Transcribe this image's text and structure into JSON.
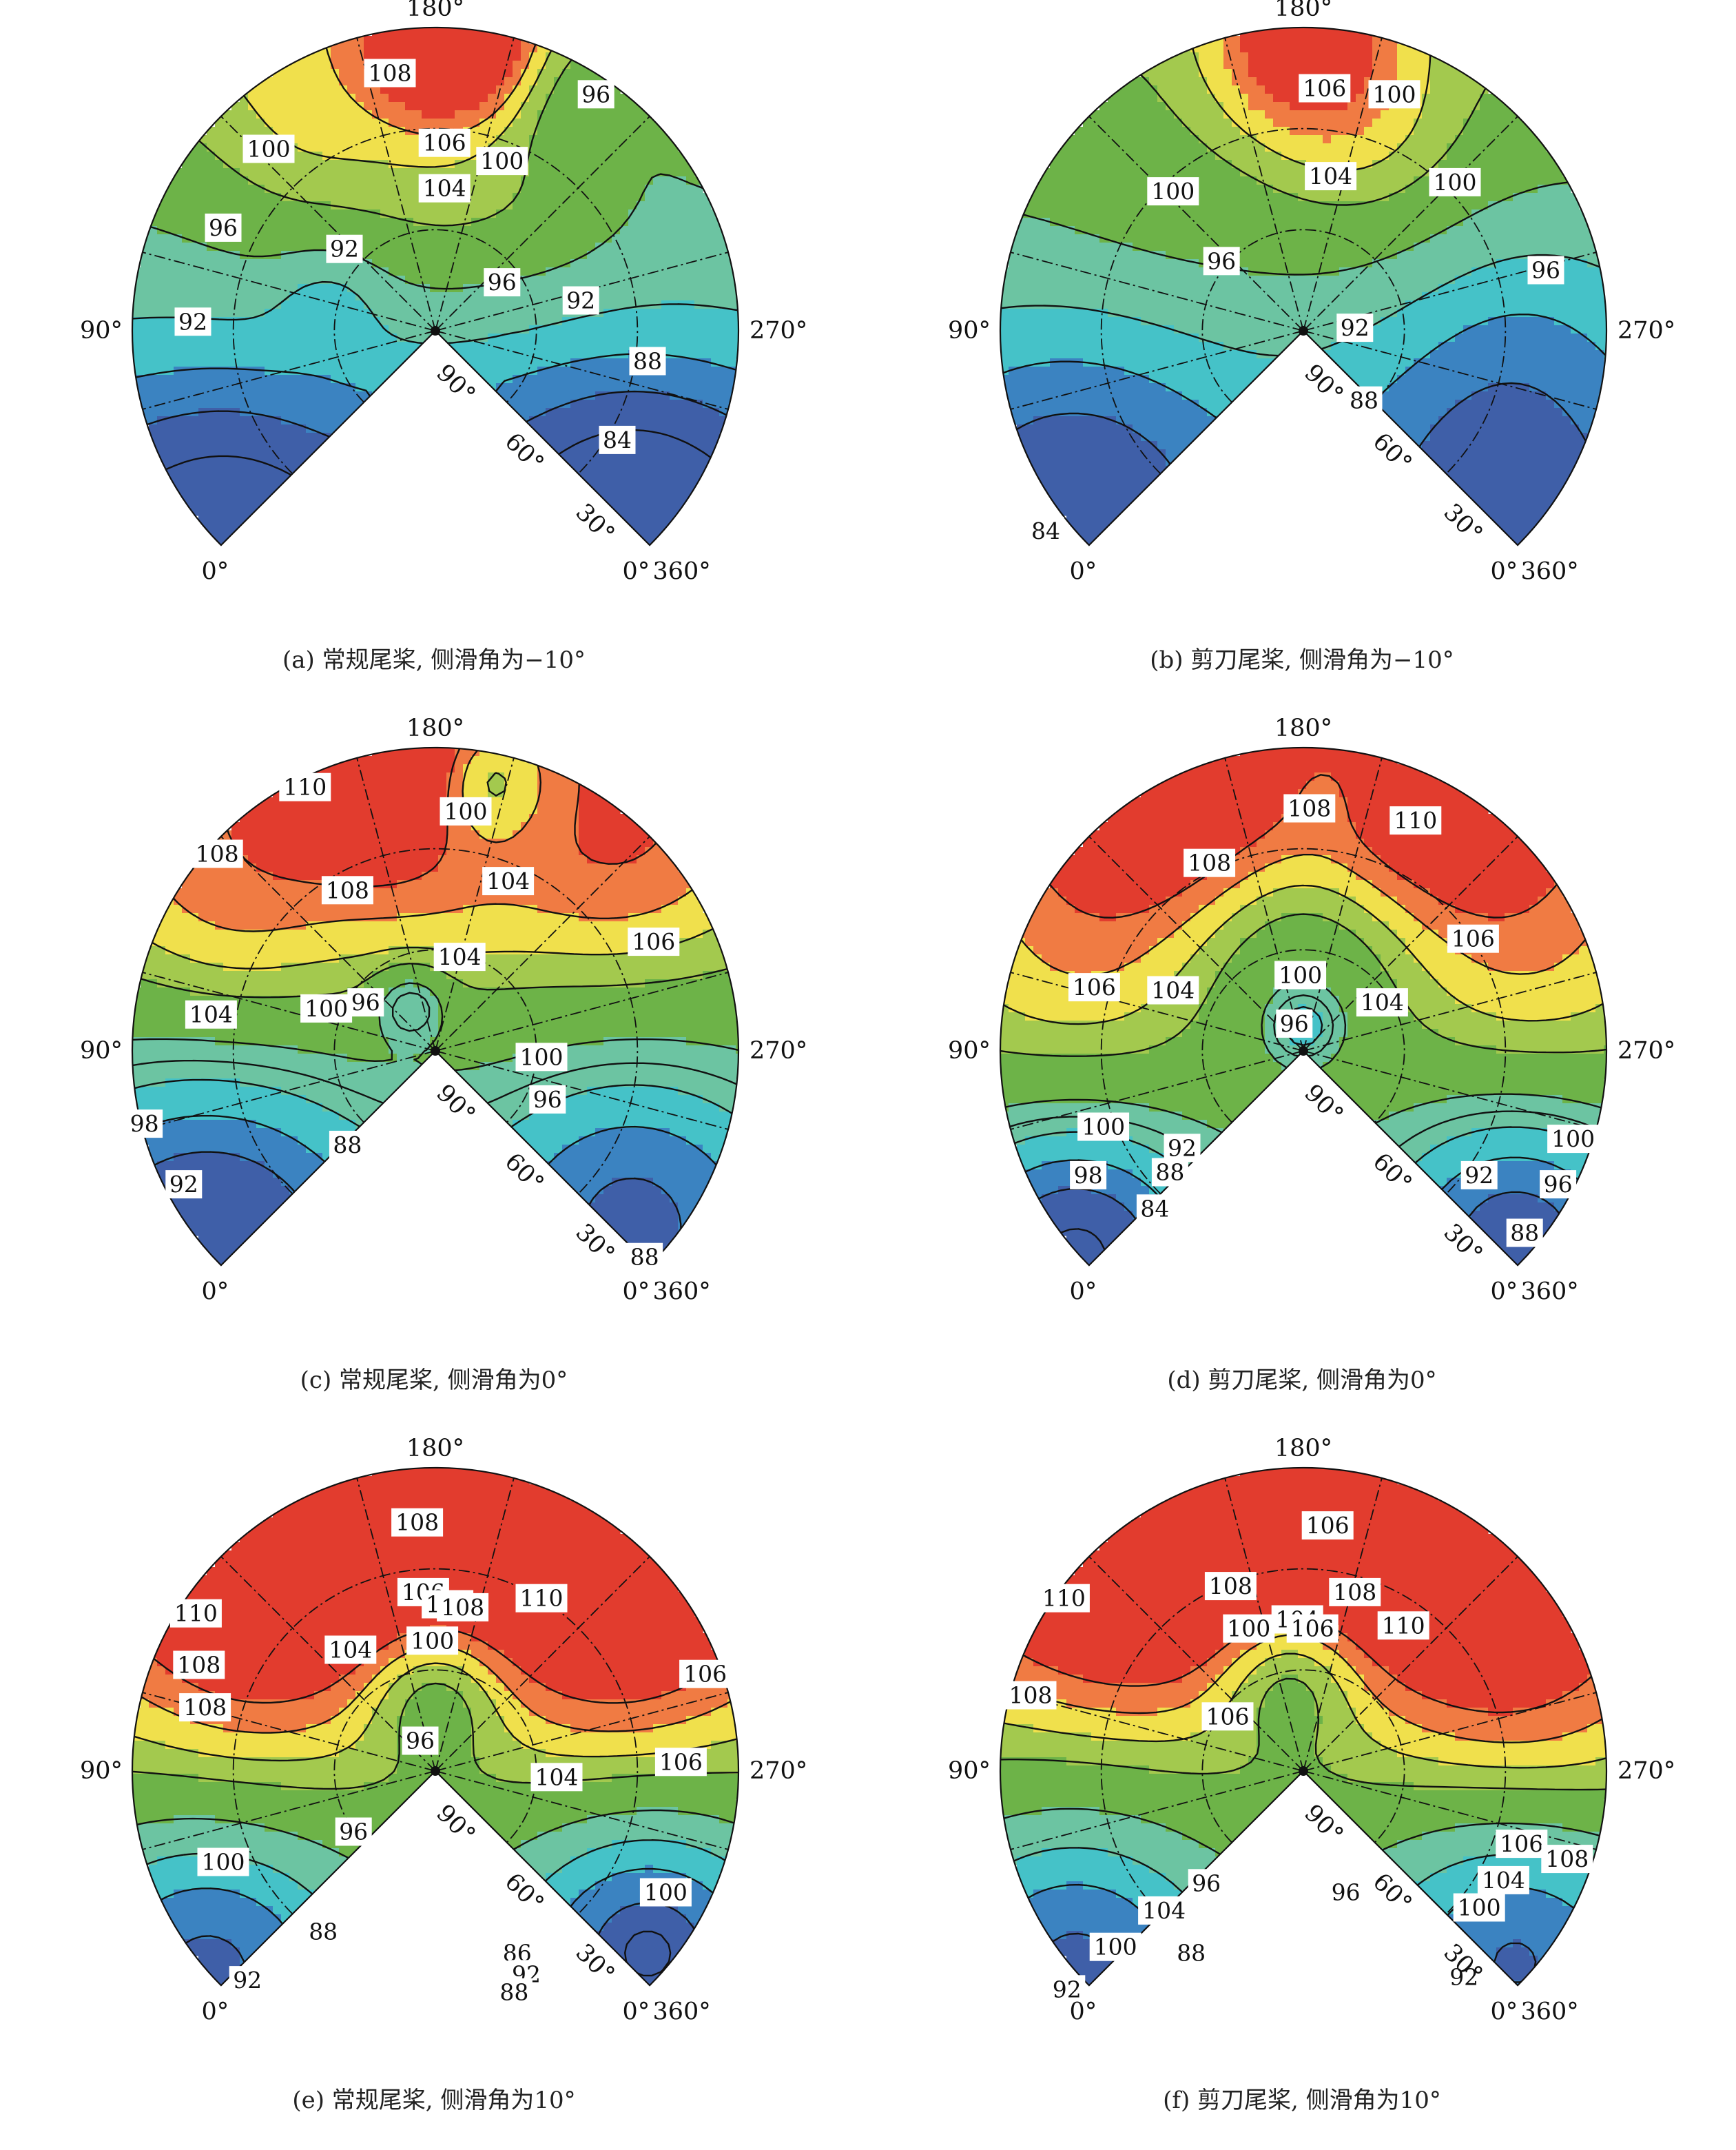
{
  "colors": {
    "84": "#3f5fa8",
    "88": "#3b83c1",
    "92": "#45c2c8",
    "96": "#6cc4a2",
    "100": "#6db348",
    "104": "#a3c94e",
    "108": "#f0e04c",
    "110": "#f07b43",
    "112": "#e23c2e"
  },
  "azimuth_labels": [
    "0°",
    "90°",
    "180°",
    "270°",
    "0°",
    "360°"
  ],
  "elevation_labels": [
    "90°",
    "60°",
    "30°"
  ],
  "chart_data": [
    {
      "type": "heatmap",
      "caption": "(a) 常规尾桨, 侧滑角为−10°",
      "contour_levels": [
        84,
        88,
        92,
        96,
        100,
        104,
        106,
        108
      ],
      "contour_labels": [
        "108",
        "100",
        "106",
        "100",
        "104",
        "96",
        "96",
        "92",
        "92",
        "96",
        "92",
        "88",
        "84"
      ],
      "grid": true
    },
    {
      "type": "heatmap",
      "caption": "(b) 剪刀尾桨, 侧滑角为−10°",
      "contour_levels": [
        84,
        88,
        92,
        96,
        100,
        104,
        106
      ],
      "contour_labels": [
        "106",
        "100",
        "100",
        "104",
        "100",
        "96",
        "96",
        "92",
        "88",
        "84"
      ],
      "grid": true
    },
    {
      "type": "heatmap",
      "caption": "(c) 常规尾桨, 侧滑角为0°",
      "contour_levels": [
        88,
        92,
        96,
        98,
        100,
        104,
        106,
        108,
        110
      ],
      "contour_labels": [
        "110",
        "100",
        "108",
        "108",
        "104",
        "106",
        "104",
        "104",
        "100",
        "96",
        "100",
        "96",
        "98",
        "88",
        "92",
        "88"
      ],
      "grid": true
    },
    {
      "type": "heatmap",
      "caption": "(d) 剪刀尾桨, 侧滑角为0°",
      "contour_levels": [
        84,
        88,
        92,
        96,
        98,
        100,
        104,
        106,
        108,
        110
      ],
      "contour_labels": [
        "108",
        "110",
        "108",
        "106",
        "100",
        "106",
        "104",
        "104",
        "96",
        "100",
        "92",
        "98",
        "88",
        "84",
        "100",
        "92",
        "96",
        "88"
      ],
      "grid": true
    },
    {
      "type": "heatmap",
      "caption": "(e) 常规尾桨, 侧滑角为10°",
      "contour_levels": [
        86,
        88,
        92,
        96,
        100,
        104,
        106,
        108,
        110
      ],
      "contour_labels": [
        "108",
        "106",
        "106",
        "108",
        "110",
        "110",
        "104",
        "100",
        "108",
        "106",
        "108",
        "106",
        "96",
        "104",
        "100",
        "96",
        "100",
        "88",
        "92",
        "86",
        "92",
        "88"
      ],
      "grid": true
    },
    {
      "type": "heatmap",
      "caption": "(f) 剪刀尾桨, 侧滑角为10°",
      "contour_levels": [
        88,
        92,
        96,
        100,
        104,
        106,
        108,
        110
      ],
      "contour_labels": [
        "106",
        "108",
        "108",
        "110",
        "100",
        "104",
        "106",
        "110",
        "108",
        "106",
        "106",
        "108",
        "104",
        "96",
        "96",
        "104",
        "100",
        "100",
        "88",
        "92",
        "92"
      ],
      "grid": true
    }
  ]
}
